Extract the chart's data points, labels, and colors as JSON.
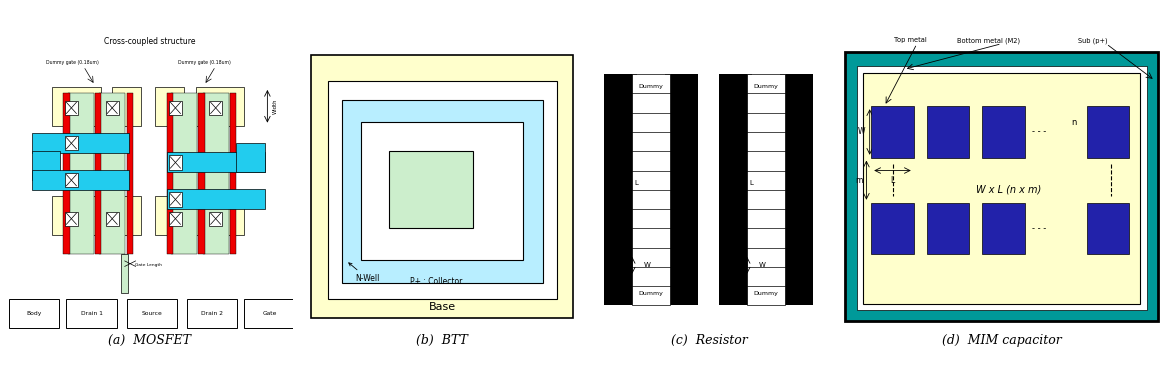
{
  "bg_color": "#ffffff",
  "labels": [
    "(a)  MOSFET",
    "(b)  BTT",
    "(c)  Resistor",
    "(d)  MIM capacitor"
  ],
  "colors": {
    "yellow_light": "#FFFFCC",
    "cyan_light": "#B8EEFF",
    "green_light": "#CCEECC",
    "red": "#EE0000",
    "cyan_metal": "#22CCEE",
    "dark_blue": "#2222AA",
    "teal": "#009999",
    "black": "#000000",
    "white": "#FFFFFF",
    "yellow_bg": "#FFFFA0"
  }
}
